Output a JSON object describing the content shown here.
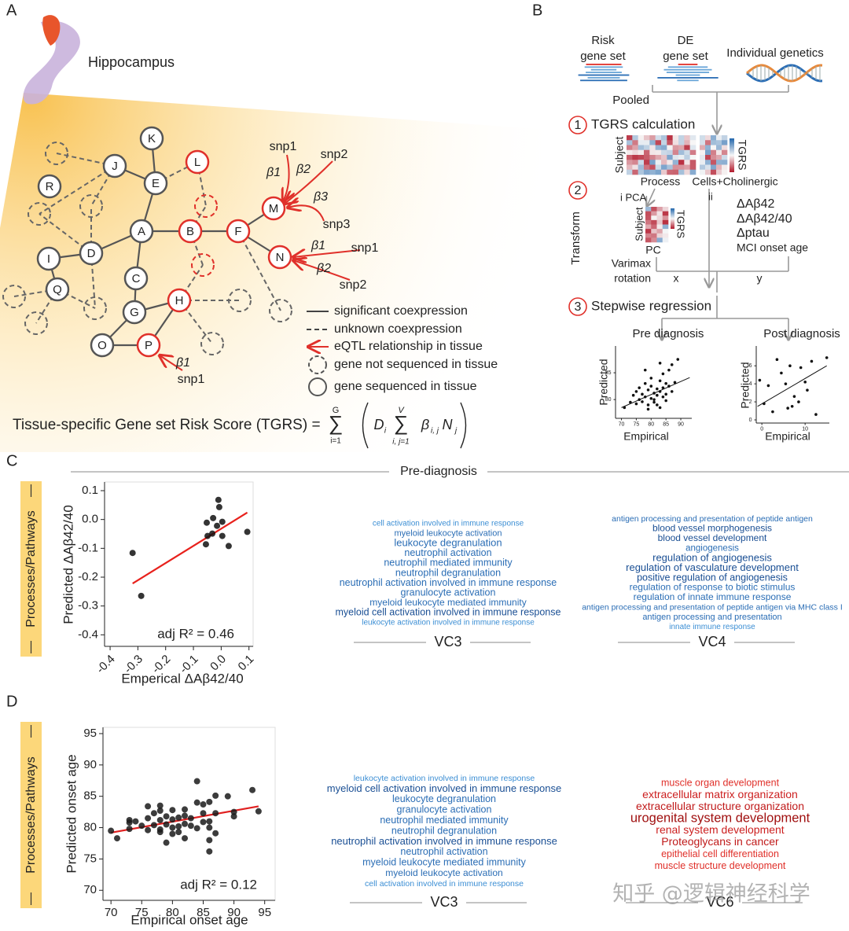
{
  "panel_a": {
    "label": "A",
    "region": "Hippocampus",
    "nodes": [
      "R",
      "K",
      "J",
      "E",
      "L",
      "D",
      "A",
      "B",
      "F",
      "M",
      "N",
      "I",
      "C",
      "Q",
      "H",
      "G",
      "O",
      "P"
    ],
    "eqtl_labels": [
      "snp1",
      "snp2",
      "β1",
      "β2",
      "β3",
      "snp3",
      "β1",
      "snp1",
      "β2",
      "snp2",
      "β1",
      "snp1"
    ],
    "legend": [
      "significant coexpression",
      "unknown coexpression",
      "eQTL relationship in tissue",
      "gene not sequenced in tissue",
      "gene sequenced in tissue"
    ],
    "formula": {
      "lhs": "Tissue-specific Gene set Risk Score (TGRS) =",
      "parts": [
        "G",
        "∑",
        "i=1",
        "D",
        "i",
        "V",
        "∑",
        "i, j=1",
        "β",
        "i, j",
        "N",
        "j"
      ]
    }
  },
  "panel_b": {
    "label": "B",
    "risk_gene_set": [
      "Risk",
      "gene set"
    ],
    "de_gene_set": [
      "DE",
      "gene set"
    ],
    "genetics": "Individual genetics",
    "pooled": "Pooled",
    "steps": [
      {
        "number": 1,
        "label": "TGRS calculation"
      },
      {
        "number": 2
      },
      {
        "number": 3,
        "label": "Stepwise regression"
      }
    ],
    "heatmap": {
      "axis": "Subject",
      "legend": "TGRS",
      "groups": [
        "Process",
        "Cells+Cholinergic"
      ]
    },
    "transform": {
      "label": "Transform",
      "pca": "i PCA",
      "other": "ii",
      "axis": "Subject",
      "legend": "TGRS",
      "pc": "PC",
      "rotation": [
        "Varimax",
        "rotation"
      ],
      "x": "x",
      "y": "y"
    },
    "outcomes": [
      "ΔAβ42",
      "ΔAβ42/40",
      "Δptau",
      "MCI onset age"
    ]
  },
  "panel_c": {
    "label": "C",
    "header": "Pre-diagnosis",
    "side_label": "Processes/Pathways",
    "clouds": [
      {
        "title": "VC3",
        "terms": [
          "cell activation involved in immune response",
          "myeloid leukocyte activation",
          "leukocyte degranulation",
          "neutrophil activation",
          "neutrophil mediated immunity",
          "neutrophil degranulation",
          "neutrophil activation involved in immune response",
          "granulocyte activation",
          "myeloid leukocyte mediated immunity",
          "myeloid cell activation involved in immune response",
          "leukocyte activation involved in immune response"
        ]
      },
      {
        "title": "VC4",
        "terms": [
          "antigen processing and presentation of peptide antigen",
          "blood vessel morphogenesis",
          "blood vessel development",
          "angiogenesis",
          "regulation of angiogenesis",
          "regulation of vasculature development",
          "positive regulation of angiogenesis",
          "regulation of response to biotic stimulus",
          "regulation of innate immune response",
          "antigen processing and presentation of peptide antigen via MHC class I",
          "antigen processing and presentation",
          "innate immune response"
        ]
      }
    ]
  },
  "panel_d": {
    "label": "D",
    "side_label": "Processes/Pathways",
    "clouds": [
      {
        "title": "VC3",
        "terms": [
          "leukocyte activation involved in immune response",
          "myeloid cell activation involved in immune response",
          "leukocyte degranulation",
          "granulocyte activation",
          "neutrophil mediated immunity",
          "neutrophil degranulation",
          "neutrophil activation involved in immune response",
          "neutrophil activation",
          "myeloid leukocyte mediated immunity",
          "myeloid leukocyte activation",
          "cell activation involved in immune response"
        ]
      },
      {
        "title": "VC6",
        "terms": [
          "muscle organ development",
          "extracellular matrix organization",
          "extracellular structure organization",
          "urogenital system development",
          "renal system development",
          "Proteoglycans in cancer",
          "epithelial cell differentiation",
          "muscle structure development"
        ]
      }
    ]
  },
  "watermark": "知乎 @逻辑神经科学",
  "chart_data": [
    {
      "type": "scatter",
      "title": "Pre diagnosis",
      "xlabel": "Empirical",
      "ylabel": "Predicted",
      "x": [
        71,
        73,
        74,
        75,
        75,
        76,
        76,
        77,
        77,
        78,
        78,
        79,
        79,
        79,
        80,
        80,
        80,
        81,
        81,
        81,
        82,
        82,
        82,
        83,
        83,
        83,
        84,
        84,
        84,
        85,
        85,
        85,
        86,
        86,
        87,
        87,
        88,
        89,
        78,
        83
      ],
      "values": [
        78.5,
        79.5,
        80.8,
        79.2,
        81.5,
        80.0,
        82.2,
        79.6,
        81.0,
        80.5,
        83.0,
        79.0,
        81.8,
        78.2,
        80.2,
        82.5,
        84.0,
        79.5,
        81.2,
        80.0,
        82.0,
        79.0,
        80.8,
        81.5,
        83.5,
        78.5,
        80.5,
        82.2,
        84.8,
        81.0,
        83.0,
        79.8,
        82.5,
        85.5,
        81.5,
        86.5,
        83.2,
        87.5,
        85.5,
        86.8
      ],
      "color": "#111111",
      "fit": {
        "x": [
          70,
          93
        ],
        "y": [
          78.5,
          84.1
        ],
        "color": "#111111"
      },
      "xlim": [
        68,
        93.7
      ],
      "ylim": [
        76.5,
        90
      ],
      "xticks": [
        70,
        75,
        80,
        85,
        90
      ],
      "yticks": [
        80,
        85
      ],
      "grid": false
    },
    {
      "type": "scatter",
      "title": "Post diagnosis",
      "xlabel": "Empirical",
      "ylabel": "Predicted",
      "x": [
        -0.5,
        0.5,
        1.5,
        2.5,
        3.5,
        4.5,
        5.5,
        6,
        6.5,
        7,
        7.5,
        8.5,
        9,
        10,
        10.5,
        11.5,
        12.5,
        15
      ],
      "values": [
        4.4,
        1.8,
        3.8,
        0.9,
        6.7,
        5.2,
        4.0,
        1.3,
        6.0,
        1.5,
        2.6,
        2.0,
        5.8,
        4.2,
        3.3,
        6.5,
        0.6,
        6.9
      ],
      "color": "#111111",
      "fit": {
        "x": [
          -1,
          15
        ],
        "y": [
          1.5,
          6.0
        ],
        "color": "#111111"
      },
      "xlim": [
        -1.3,
        15.6
      ],
      "ylim": [
        -0.35,
        8.2
      ],
      "xticks": [
        0,
        10
      ],
      "yticks": [
        0,
        2,
        4,
        6
      ],
      "grid": false
    },
    {
      "type": "scatter",
      "xlabel": "Emperical ΔAβ42/40",
      "ylabel": "Predicted ΔAβ42/40",
      "annotation": "adj R² = 0.46",
      "x": [
        -0.319,
        -0.288,
        -0.01,
        -0.007,
        -0.029,
        -0.052,
        -0.015,
        0.004,
        -0.032,
        -0.055,
        -0.049,
        0.027,
        0.094,
        0.004
      ],
      "values": [
        -0.116,
        -0.265,
        0.068,
        0.043,
        0.005,
        -0.011,
        -0.022,
        -0.008,
        -0.049,
        -0.086,
        -0.057,
        -0.092,
        -0.043,
        -0.057
      ],
      "color": "#111111",
      "fit": {
        "x": [
          -0.319,
          0.094
        ],
        "y": [
          -0.222,
          0.024
        ],
        "color": "#e8211c"
      },
      "xlim": [
        -0.42,
        0.115
      ],
      "ylim": [
        -0.44,
        0.13
      ],
      "xticks": [
        -0.4,
        -0.3,
        -0.2,
        -0.1,
        {
          "value": 0,
          "label": "0.0"
        },
        0.1
      ],
      "yticks": [
        0.1,
        {
          "value": 0,
          "label": "0.0"
        },
        -0.1,
        -0.2,
        -0.3,
        -0.4
      ],
      "grid": false
    },
    {
      "type": "scatter",
      "xlabel": "Empirical onset age",
      "ylabel": "Predicted onset age",
      "annotation": "adj R² = 0.12",
      "x": [
        70,
        71,
        73,
        73,
        74,
        75,
        76,
        76,
        77,
        77,
        78,
        78,
        78,
        78,
        78,
        79,
        79,
        80,
        80,
        80,
        80,
        81,
        81,
        81,
        82,
        82,
        82,
        82,
        83,
        83,
        84,
        84,
        84,
        85,
        85,
        85,
        86,
        86,
        86,
        86,
        86,
        87,
        87,
        87,
        89,
        90,
        90,
        93,
        94,
        79,
        76,
        73
      ],
      "values": [
        79.5,
        78.3,
        79.8,
        81.2,
        81.0,
        80.3,
        79.6,
        81.5,
        80.4,
        82.3,
        79.7,
        81.2,
        82.7,
        83.5,
        79.3,
        80.5,
        81.8,
        80.0,
        81.3,
        82.8,
        79.0,
        80.2,
        81.6,
        79.3,
        80.6,
        81.9,
        82.9,
        78.3,
        80.3,
        81.5,
        79.9,
        84.0,
        87.4,
        80.9,
        82.3,
        83.7,
        76.2,
        78.0,
        81.0,
        84.1,
        80.0,
        82.3,
        79.1,
        85.1,
        85.0,
        82.5,
        81.8,
        86.0,
        82.6,
        77.6,
        83.4,
        80.8
      ],
      "color": "#1a1a1a",
      "fit": {
        "x": [
          70,
          94
        ],
        "y": [
          79.2,
          83.4
        ],
        "color": "#e02020"
      },
      "xlim": [
        68.7,
        96.7
      ],
      "ylim": [
        68.4,
        96
      ],
      "xticks": [
        70,
        75,
        80,
        85,
        90,
        95
      ],
      "yticks": [
        70,
        75,
        80,
        85,
        90,
        95
      ],
      "grid": false
    }
  ]
}
